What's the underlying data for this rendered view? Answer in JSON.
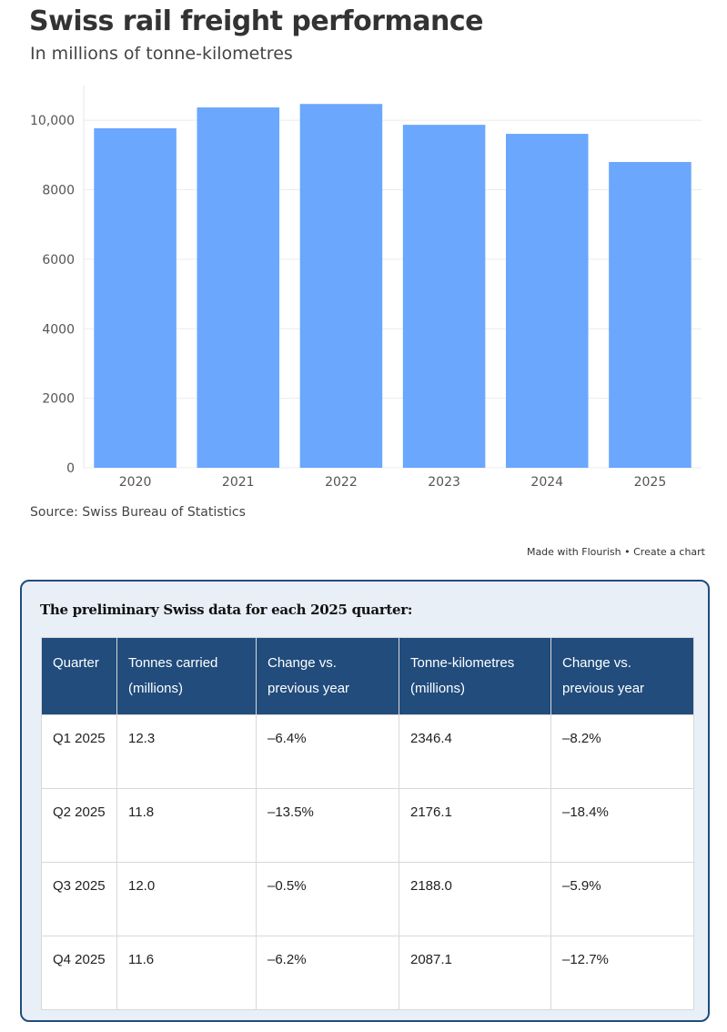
{
  "chart_data": {
    "type": "bar",
    "title": "Swiss rail freight performance",
    "subtitle": "In millions of tonne-kilometres",
    "categories": [
      "2020",
      "2021",
      "2022",
      "2023",
      "2024",
      "2025"
    ],
    "values": [
      9770,
      10370,
      10470,
      9870,
      9610,
      8800
    ],
    "ylim": [
      0,
      11000
    ],
    "yticks": [
      0,
      2000,
      4000,
      6000,
      8000,
      10000
    ],
    "ytick_labels": [
      "0",
      "2000",
      "4000",
      "6000",
      "8000",
      "10,000"
    ],
    "xlabel": "",
    "ylabel": "",
    "grid": true,
    "bar_color": "#6aa7fd",
    "source": "Source: Swiss Bureau of Statistics",
    "credit": "Made with Flourish • Create a chart"
  },
  "table": {
    "heading": "The preliminary Swiss data for each 2025 quarter:",
    "headers": [
      "Quarter",
      "Tonnes carried (millions)",
      "Change vs. previous year",
      "Tonne-kilometres (millions)",
      "Change vs. previous year"
    ],
    "rows": [
      [
        "Q1 2025",
        "12.3",
        "–6.4%",
        "2346.4",
        "–8.2%"
      ],
      [
        "Q2 2025",
        "11.8",
        "–13.5%",
        "2176.1",
        "–18.4%"
      ],
      [
        "Q3 2025",
        "12.0",
        "–0.5%",
        "2188.0",
        "–5.9%"
      ],
      [
        "Q4 2025",
        "11.6",
        "–6.2%",
        "2087.1",
        "–12.7%"
      ]
    ]
  }
}
